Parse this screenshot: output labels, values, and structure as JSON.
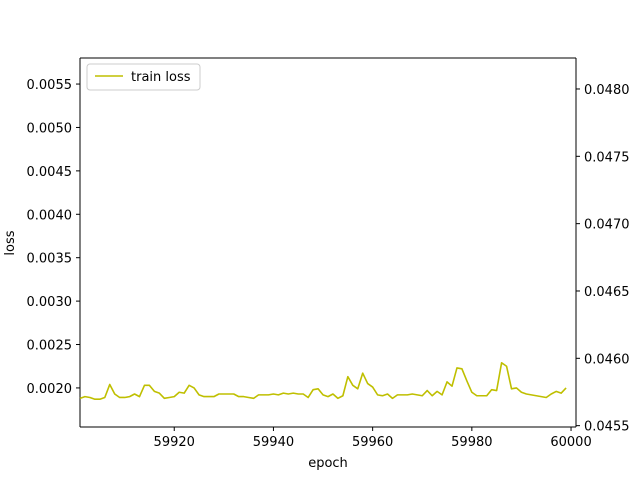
{
  "chart_data": {
    "type": "line",
    "xlabel": "epoch",
    "ylabel": "loss",
    "xlim": [
      59901,
      60001
    ],
    "ylim": [
      0.00155,
      0.0058
    ],
    "x_ticks": [
      59920,
      59940,
      59960,
      59980,
      60000
    ],
    "y_ticks": [
      0.002,
      0.0025,
      0.003,
      0.0035,
      0.004,
      0.0045,
      0.005,
      0.0055
    ],
    "y2lim": [
      0.04549,
      0.04823
    ],
    "y2_ticks": [
      0.0455,
      0.046,
      0.0465,
      0.047,
      0.0475,
      0.048
    ],
    "grid": false,
    "legend_position": "top-left",
    "series": [
      {
        "name": "train loss",
        "color": "#bfbf00",
        "x": [
          59901,
          59902,
          59903,
          59904,
          59905,
          59906,
          59907,
          59908,
          59909,
          59910,
          59911,
          59912,
          59913,
          59914,
          59915,
          59916,
          59917,
          59918,
          59919,
          59920,
          59921,
          59922,
          59923,
          59924,
          59925,
          59926,
          59927,
          59928,
          59929,
          59930,
          59931,
          59932,
          59933,
          59934,
          59935,
          59936,
          59937,
          59938,
          59939,
          59940,
          59941,
          59942,
          59943,
          59944,
          59945,
          59946,
          59947,
          59948,
          59949,
          59950,
          59951,
          59952,
          59953,
          59954,
          59955,
          59956,
          59957,
          59958,
          59959,
          59960,
          59961,
          59962,
          59963,
          59964,
          59965,
          59966,
          59967,
          59968,
          59969,
          59970,
          59971,
          59972,
          59973,
          59974,
          59975,
          59976,
          59977,
          59978,
          59979,
          59980,
          59981,
          59982,
          59983,
          59984,
          59985,
          59986,
          59987,
          59988,
          59989,
          59990,
          59991,
          59992,
          59993,
          59994,
          59995,
          59996,
          59997,
          59998,
          59999
        ],
        "values": [
          0.00188,
          0.0019,
          0.00189,
          0.00187,
          0.00187,
          0.00189,
          0.00204,
          0.00193,
          0.00189,
          0.00189,
          0.0019,
          0.00193,
          0.0019,
          0.00203,
          0.00203,
          0.00196,
          0.00194,
          0.00188,
          0.00189,
          0.0019,
          0.00195,
          0.00194,
          0.00203,
          0.002,
          0.00192,
          0.0019,
          0.0019,
          0.0019,
          0.00193,
          0.00193,
          0.00193,
          0.00193,
          0.0019,
          0.0019,
          0.00189,
          0.00188,
          0.00192,
          0.00192,
          0.00192,
          0.00193,
          0.00192,
          0.00194,
          0.00193,
          0.00194,
          0.00193,
          0.00193,
          0.00189,
          0.00198,
          0.00199,
          0.00192,
          0.0019,
          0.00193,
          0.00188,
          0.00191,
          0.00213,
          0.00203,
          0.00199,
          0.00217,
          0.00205,
          0.00201,
          0.00192,
          0.00191,
          0.00193,
          0.00188,
          0.00192,
          0.00192,
          0.00192,
          0.00193,
          0.00192,
          0.00191,
          0.00197,
          0.00191,
          0.00196,
          0.00192,
          0.00207,
          0.00202,
          0.00223,
          0.00222,
          0.00208,
          0.00195,
          0.00191,
          0.00191,
          0.00191,
          0.00198,
          0.00197,
          0.00229,
          0.00225,
          0.00199,
          0.002,
          0.00195,
          0.00193,
          0.00192,
          0.00191,
          0.0019,
          0.00189,
          0.00193,
          0.00196,
          0.00194,
          0.002
        ]
      }
    ]
  }
}
